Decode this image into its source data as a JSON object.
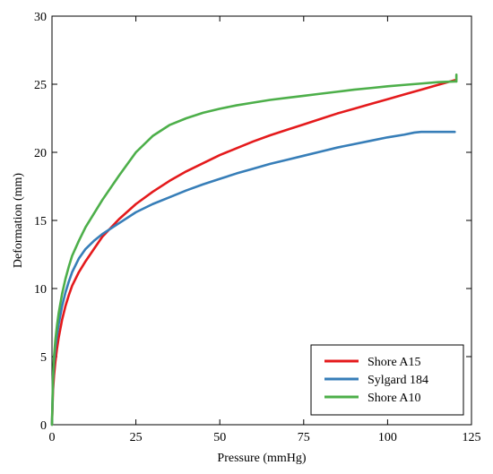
{
  "chart_data": {
    "type": "line",
    "title": "",
    "xlabel": "Pressure (mmHg)",
    "ylabel": "Deformation (mm)",
    "xlim": [
      0,
      125
    ],
    "ylim": [
      0,
      30
    ],
    "xticks": [
      0,
      25,
      50,
      75,
      100,
      125
    ],
    "yticks": [
      0,
      5,
      10,
      15,
      20,
      25,
      30
    ],
    "xtick_labels": [
      "0",
      "25",
      "50",
      "75",
      "100",
      "125"
    ],
    "ytick_labels": [
      "0",
      "5",
      "10",
      "15",
      "20",
      "25",
      "30"
    ],
    "grid": false,
    "legend_position": "bottom-right",
    "series": [
      {
        "name": "Shore A15",
        "color": "#e41a1c",
        "x": [
          0,
          0.3,
          0.6,
          1,
          1.5,
          2,
          3,
          4,
          5,
          6,
          8,
          10,
          12.5,
          15,
          20,
          25,
          30,
          35,
          40,
          45,
          50,
          55,
          60,
          65,
          70,
          75,
          80,
          85,
          90,
          95,
          100,
          105,
          110,
          115,
          120
        ],
        "y": [
          0,
          2.5,
          3.6,
          4.6,
          5.6,
          6.4,
          7.7,
          8.7,
          9.5,
          10.2,
          11.2,
          12.0,
          12.9,
          13.8,
          15.1,
          16.2,
          17.1,
          17.9,
          18.6,
          19.2,
          19.8,
          20.3,
          20.8,
          21.25,
          21.65,
          22.05,
          22.45,
          22.85,
          23.2,
          23.55,
          23.9,
          24.25,
          24.6,
          24.95,
          25.3
        ]
      },
      {
        "name": "Sylgard 184",
        "color": "#377eb8",
        "x": [
          0,
          0.3,
          0.6,
          1,
          1.5,
          2,
          3,
          4,
          5,
          6,
          8,
          10,
          12.5,
          15,
          20,
          25,
          30,
          35,
          40,
          45,
          50,
          55,
          60,
          65,
          70,
          75,
          80,
          85,
          90,
          95,
          100,
          105,
          108,
          110,
          115,
          120
        ],
        "y": [
          0,
          3.2,
          4.6,
          5.7,
          6.6,
          7.4,
          8.7,
          9.7,
          10.5,
          11.2,
          12.2,
          12.9,
          13.5,
          14.0,
          14.8,
          15.6,
          16.2,
          16.7,
          17.2,
          17.65,
          18.05,
          18.45,
          18.8,
          19.15,
          19.45,
          19.75,
          20.05,
          20.35,
          20.6,
          20.85,
          21.1,
          21.3,
          21.45,
          21.5,
          21.5,
          21.5
        ]
      },
      {
        "name": "Shore A10",
        "color": "#4daf4a",
        "x": [
          0,
          0.3,
          0.6,
          1,
          1.5,
          2,
          3,
          4,
          5,
          6,
          8,
          10,
          15,
          20,
          25,
          30,
          35,
          40,
          45,
          50,
          55,
          60,
          65,
          70,
          75,
          80,
          85,
          90,
          95,
          100,
          105,
          110,
          115,
          120,
          120.5,
          120.5
        ],
        "y": [
          0,
          3.5,
          5.0,
          6.2,
          7.3,
          8.2,
          9.6,
          10.7,
          11.6,
          12.4,
          13.5,
          14.5,
          16.5,
          18.3,
          20.0,
          21.2,
          22.0,
          22.5,
          22.9,
          23.2,
          23.45,
          23.65,
          23.85,
          24.0,
          24.15,
          24.3,
          24.45,
          24.6,
          24.72,
          24.85,
          24.95,
          25.05,
          25.15,
          25.2,
          25.2,
          25.7
        ]
      }
    ]
  }
}
